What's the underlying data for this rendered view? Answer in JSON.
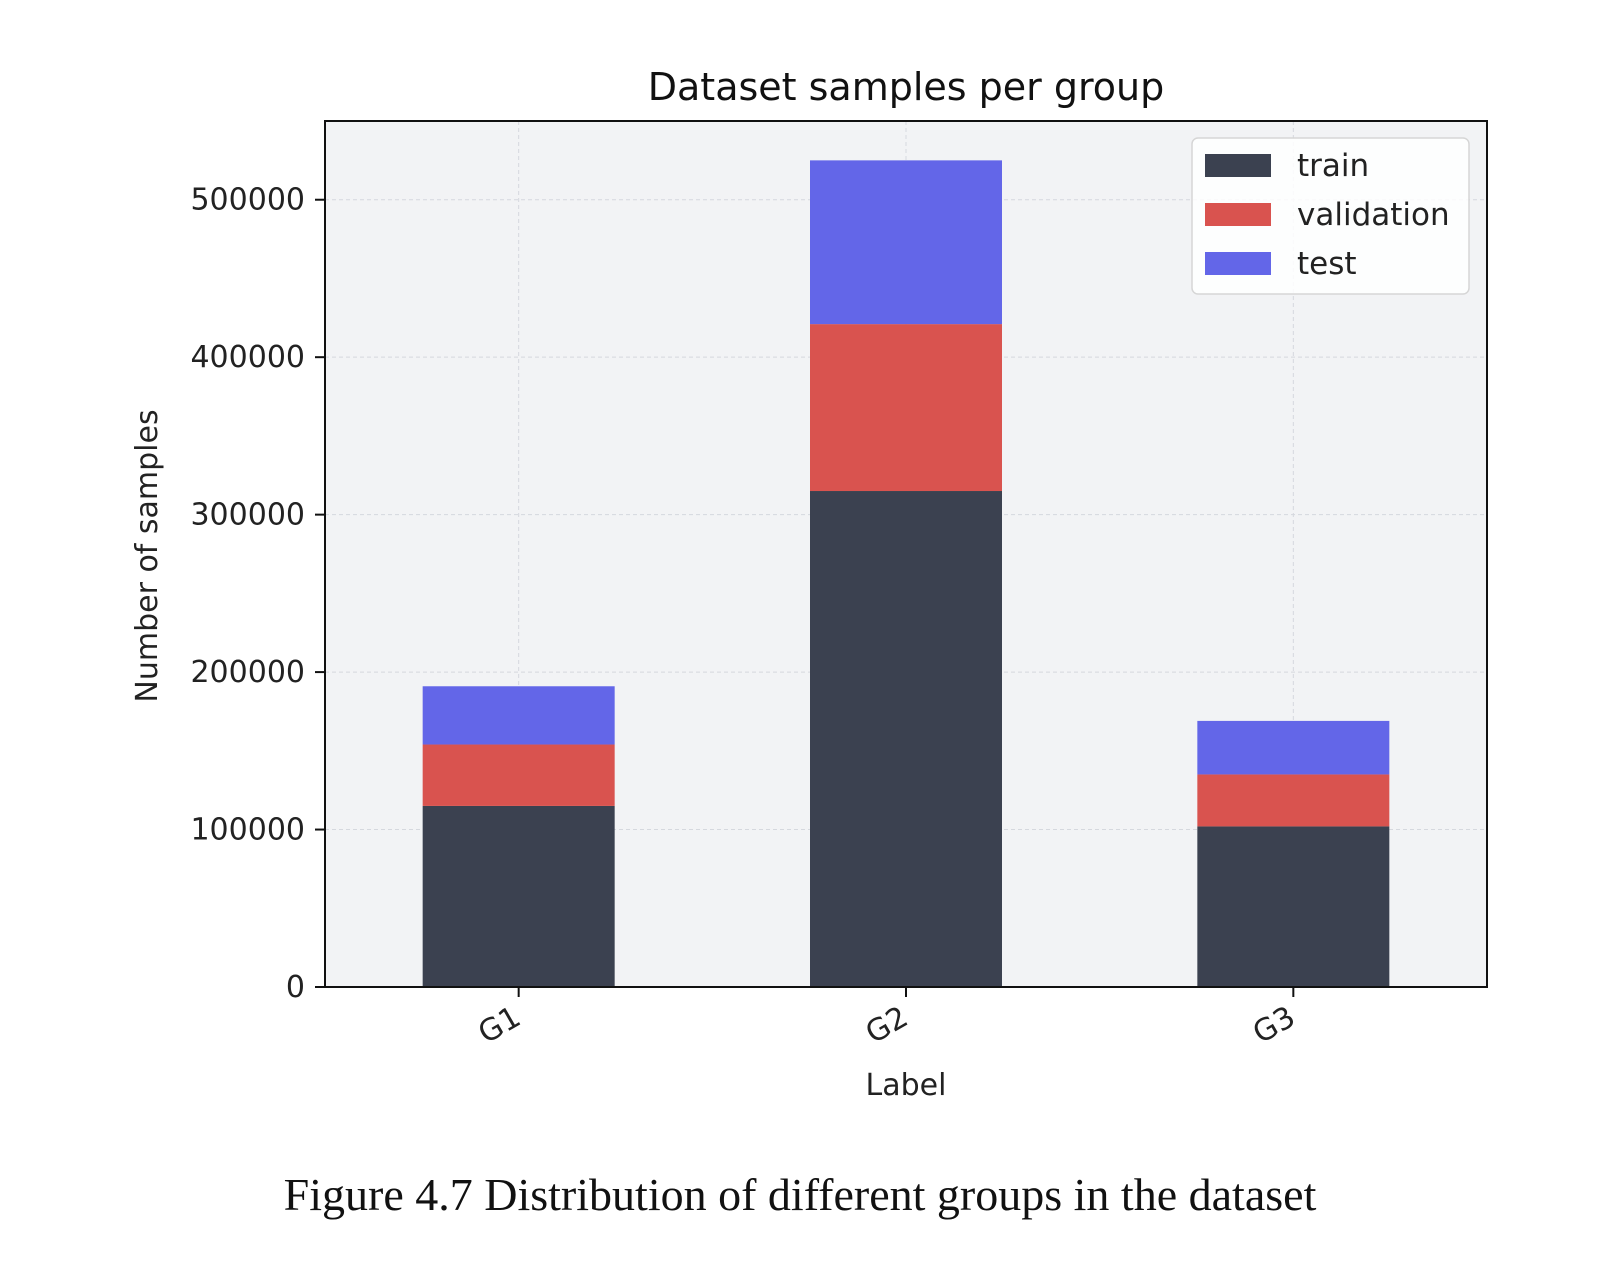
{
  "chart_data": {
    "type": "bar",
    "stacked": true,
    "title": "Dataset samples per group",
    "xlabel": "Label",
    "ylabel": "Number of samples",
    "categories": [
      "G1",
      "G2",
      "G3"
    ],
    "series": [
      {
        "name": "train",
        "color": "#3b4150",
        "values": [
          115000,
          315000,
          102000
        ]
      },
      {
        "name": "validation",
        "color": "#d9534f",
        "values": [
          39000,
          106000,
          33000
        ]
      },
      {
        "name": "test",
        "color": "#6366e8",
        "values": [
          37000,
          104000,
          34000
        ]
      }
    ],
    "ylim": [
      0,
      550000
    ],
    "yticks": [
      0,
      100000,
      200000,
      300000,
      400000,
      500000
    ],
    "ytick_labels": [
      "0",
      "100000",
      "200000",
      "300000",
      "400000",
      "500000"
    ],
    "grid": true,
    "legend_position": "top-right",
    "background_color": "#f2f3f5"
  },
  "caption": "Figure 4.7 Distribution of different groups in the dataset"
}
